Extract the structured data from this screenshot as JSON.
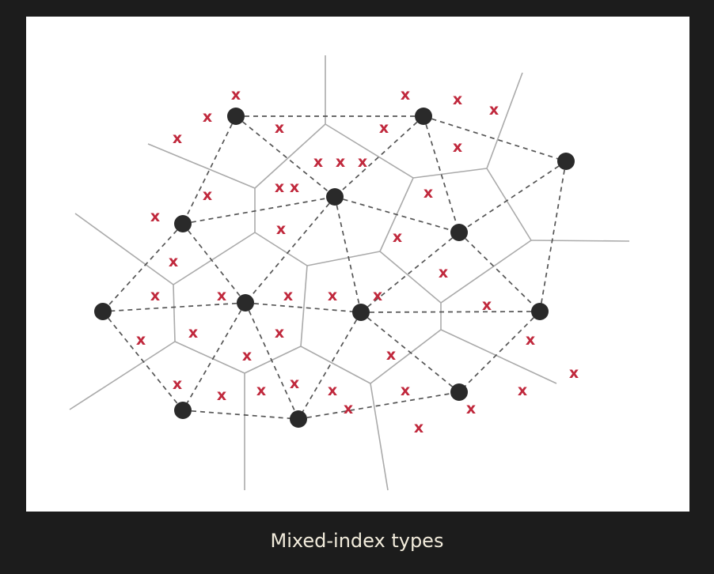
{
  "caption": "Mixed-index types",
  "diagram": {
    "centroid_marker": "filled-circle",
    "vector_marker": "x",
    "vector_marker_label": "x",
    "colors": {
      "page_background": "#1c1c1c",
      "panel_background": "#ffffff",
      "voronoi_edge": "#aaaaaa",
      "dashed_link": "#555555",
      "centroid": "#2a2a2a",
      "vector_marker": "#c0283c",
      "caption_text": "#f2ecdc"
    }
  }
}
